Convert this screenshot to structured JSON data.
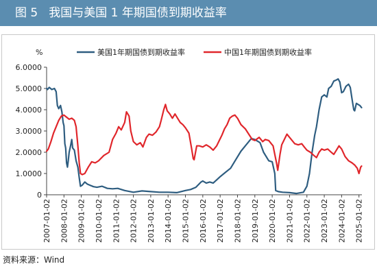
{
  "header": {
    "figure_label": "图 5",
    "title": "我国与美国 1 年期国债到期收益率"
  },
  "source": "资料来源：Wind",
  "colors": {
    "header_bg": "#5b8db0",
    "us": "#2e5d80",
    "cn": "#e0262b"
  },
  "chart_data": {
    "type": "line",
    "title": "我国与美国 1 年期国债到期收益率",
    "ylabel": "%",
    "xlabel": "",
    "ylim": [
      0,
      6
    ],
    "y_ticks": [
      "0",
      "1.0000",
      "2.0000",
      "3.0000",
      "4.0000",
      "5.0000",
      "6.0000"
    ],
    "x_ticks": [
      "2007-01-02",
      "2008-01-02",
      "2009-01-02",
      "2010-01-02",
      "2011-01-02",
      "2012-01-02",
      "2013-01-02",
      "2014-01-02",
      "2015-01-02",
      "2016-01-02",
      "2017-01-02",
      "2018-01-02",
      "2019-01-02",
      "2020-01-02",
      "2021-01-02",
      "2022-01-02",
      "2023-01-02",
      "2024-01-02",
      "2025-01-02"
    ],
    "legend_position": "top",
    "series": [
      {
        "name": "美国1年期国债到期收益率",
        "color": "#2e5d80",
        "points": [
          [
            2007.0,
            5.0
          ],
          [
            2007.05,
            4.95
          ],
          [
            2007.15,
            5.05
          ],
          [
            2007.3,
            4.95
          ],
          [
            2007.45,
            5.0
          ],
          [
            2007.55,
            4.85
          ],
          [
            2007.62,
            4.2
          ],
          [
            2007.7,
            4.05
          ],
          [
            2007.8,
            4.2
          ],
          [
            2007.88,
            3.9
          ],
          [
            2007.95,
            3.4
          ],
          [
            2008.0,
            3.25
          ],
          [
            2008.05,
            2.4
          ],
          [
            2008.1,
            2.2
          ],
          [
            2008.15,
            1.5
          ],
          [
            2008.2,
            1.3
          ],
          [
            2008.25,
            1.6
          ],
          [
            2008.3,
            2.0
          ],
          [
            2008.38,
            2.3
          ],
          [
            2008.45,
            2.6
          ],
          [
            2008.5,
            2.2
          ],
          [
            2008.6,
            2.1
          ],
          [
            2008.7,
            1.6
          ],
          [
            2008.8,
            1.3
          ],
          [
            2008.88,
            0.8
          ],
          [
            2008.95,
            0.4
          ],
          [
            2009.05,
            0.45
          ],
          [
            2009.2,
            0.6
          ],
          [
            2009.35,
            0.5
          ],
          [
            2009.5,
            0.45
          ],
          [
            2009.7,
            0.38
          ],
          [
            2009.9,
            0.35
          ],
          [
            2010.2,
            0.4
          ],
          [
            2010.5,
            0.3
          ],
          [
            2010.8,
            0.28
          ],
          [
            2011.1,
            0.3
          ],
          [
            2011.5,
            0.2
          ],
          [
            2012.0,
            0.12
          ],
          [
            2012.5,
            0.18
          ],
          [
            2013.0,
            0.15
          ],
          [
            2013.5,
            0.12
          ],
          [
            2014.0,
            0.12
          ],
          [
            2014.5,
            0.1
          ],
          [
            2015.0,
            0.2
          ],
          [
            2015.3,
            0.25
          ],
          [
            2015.6,
            0.35
          ],
          [
            2015.9,
            0.6
          ],
          [
            2016.0,
            0.65
          ],
          [
            2016.2,
            0.55
          ],
          [
            2016.4,
            0.6
          ],
          [
            2016.6,
            0.55
          ],
          [
            2016.8,
            0.7
          ],
          [
            2017.0,
            0.85
          ],
          [
            2017.3,
            1.05
          ],
          [
            2017.6,
            1.25
          ],
          [
            2017.9,
            1.65
          ],
          [
            2018.2,
            2.05
          ],
          [
            2018.5,
            2.35
          ],
          [
            2018.8,
            2.65
          ],
          [
            2019.0,
            2.6
          ],
          [
            2019.3,
            2.45
          ],
          [
            2019.5,
            2.0
          ],
          [
            2019.8,
            1.6
          ],
          [
            2020.0,
            1.55
          ],
          [
            2020.15,
            1.0
          ],
          [
            2020.2,
            0.2
          ],
          [
            2020.35,
            0.15
          ],
          [
            2020.6,
            0.12
          ],
          [
            2021.0,
            0.1
          ],
          [
            2021.4,
            0.06
          ],
          [
            2021.8,
            0.12
          ],
          [
            2022.0,
            0.4
          ],
          [
            2022.15,
            1.0
          ],
          [
            2022.3,
            2.0
          ],
          [
            2022.45,
            2.8
          ],
          [
            2022.55,
            3.2
          ],
          [
            2022.7,
            4.0
          ],
          [
            2022.85,
            4.6
          ],
          [
            2023.0,
            4.7
          ],
          [
            2023.15,
            4.6
          ],
          [
            2023.25,
            5.0
          ],
          [
            2023.4,
            5.1
          ],
          [
            2023.55,
            5.35
          ],
          [
            2023.7,
            5.4
          ],
          [
            2023.8,
            5.45
          ],
          [
            2023.9,
            5.3
          ],
          [
            2024.0,
            4.8
          ],
          [
            2024.1,
            4.85
          ],
          [
            2024.25,
            5.1
          ],
          [
            2024.4,
            5.2
          ],
          [
            2024.5,
            5.05
          ],
          [
            2024.6,
            4.5
          ],
          [
            2024.7,
            4.0
          ],
          [
            2024.75,
            3.95
          ],
          [
            2024.85,
            4.3
          ],
          [
            2024.95,
            4.25
          ],
          [
            2025.05,
            4.2
          ],
          [
            2025.15,
            4.1
          ]
        ]
      },
      {
        "name": "中国1年期国债到期收益率",
        "color": "#e0262b",
        "points": [
          [
            2007.0,
            2.05
          ],
          [
            2007.1,
            2.15
          ],
          [
            2007.25,
            2.5
          ],
          [
            2007.4,
            2.9
          ],
          [
            2007.55,
            3.2
          ],
          [
            2007.7,
            3.5
          ],
          [
            2007.85,
            3.7
          ],
          [
            2008.0,
            3.75
          ],
          [
            2008.15,
            3.65
          ],
          [
            2008.3,
            3.55
          ],
          [
            2008.45,
            3.6
          ],
          [
            2008.6,
            3.5
          ],
          [
            2008.7,
            3.2
          ],
          [
            2008.8,
            2.3
          ],
          [
            2008.88,
            1.5
          ],
          [
            2008.95,
            1.0
          ],
          [
            2009.05,
            0.95
          ],
          [
            2009.2,
            1.0
          ],
          [
            2009.4,
            1.3
          ],
          [
            2009.6,
            1.55
          ],
          [
            2009.8,
            1.5
          ],
          [
            2010.0,
            1.6
          ],
          [
            2010.3,
            1.85
          ],
          [
            2010.6,
            2.0
          ],
          [
            2010.8,
            2.6
          ],
          [
            2011.0,
            2.9
          ],
          [
            2011.15,
            3.2
          ],
          [
            2011.3,
            3.05
          ],
          [
            2011.5,
            3.4
          ],
          [
            2011.6,
            3.9
          ],
          [
            2011.75,
            3.7
          ],
          [
            2011.85,
            3.0
          ],
          [
            2012.0,
            2.5
          ],
          [
            2012.2,
            2.35
          ],
          [
            2012.4,
            2.45
          ],
          [
            2012.55,
            2.25
          ],
          [
            2012.75,
            2.7
          ],
          [
            2012.9,
            2.85
          ],
          [
            2013.1,
            2.8
          ],
          [
            2013.3,
            2.95
          ],
          [
            2013.5,
            3.2
          ],
          [
            2013.6,
            3.5
          ],
          [
            2013.75,
            4.0
          ],
          [
            2013.85,
            4.25
          ],
          [
            2013.95,
            3.95
          ],
          [
            2014.1,
            3.8
          ],
          [
            2014.25,
            3.6
          ],
          [
            2014.4,
            3.8
          ],
          [
            2014.55,
            3.6
          ],
          [
            2014.7,
            3.4
          ],
          [
            2014.85,
            3.3
          ],
          [
            2015.0,
            3.15
          ],
          [
            2015.2,
            2.9
          ],
          [
            2015.35,
            2.2
          ],
          [
            2015.45,
            1.7
          ],
          [
            2015.5,
            1.65
          ],
          [
            2015.65,
            2.3
          ],
          [
            2015.8,
            2.3
          ],
          [
            2016.0,
            2.25
          ],
          [
            2016.2,
            2.35
          ],
          [
            2016.4,
            2.25
          ],
          [
            2016.6,
            2.1
          ],
          [
            2016.8,
            2.3
          ],
          [
            2016.95,
            2.55
          ],
          [
            2017.1,
            2.8
          ],
          [
            2017.25,
            3.1
          ],
          [
            2017.4,
            3.3
          ],
          [
            2017.55,
            3.6
          ],
          [
            2017.7,
            3.7
          ],
          [
            2017.85,
            3.75
          ],
          [
            2018.0,
            3.6
          ],
          [
            2018.2,
            3.3
          ],
          [
            2018.45,
            3.1
          ],
          [
            2018.65,
            2.85
          ],
          [
            2018.85,
            2.6
          ],
          [
            2019.0,
            2.55
          ],
          [
            2019.25,
            2.7
          ],
          [
            2019.45,
            2.5
          ],
          [
            2019.6,
            2.6
          ],
          [
            2019.8,
            2.55
          ],
          [
            2019.95,
            2.4
          ],
          [
            2020.05,
            2.3
          ],
          [
            2020.15,
            1.9
          ],
          [
            2020.25,
            1.5
          ],
          [
            2020.32,
            1.15
          ],
          [
            2020.45,
            1.9
          ],
          [
            2020.55,
            2.35
          ],
          [
            2020.7,
            2.6
          ],
          [
            2020.85,
            2.85
          ],
          [
            2021.0,
            2.7
          ],
          [
            2021.15,
            2.55
          ],
          [
            2021.3,
            2.4
          ],
          [
            2021.5,
            2.35
          ],
          [
            2021.7,
            2.4
          ],
          [
            2021.85,
            2.25
          ],
          [
            2022.0,
            2.1
          ],
          [
            2022.2,
            2.0
          ],
          [
            2022.4,
            1.85
          ],
          [
            2022.55,
            1.75
          ],
          [
            2022.7,
            2.0
          ],
          [
            2022.85,
            2.15
          ],
          [
            2023.0,
            2.1
          ],
          [
            2023.2,
            2.15
          ],
          [
            2023.4,
            2.0
          ],
          [
            2023.55,
            1.9
          ],
          [
            2023.7,
            2.1
          ],
          [
            2023.85,
            2.3
          ],
          [
            2024.0,
            2.15
          ],
          [
            2024.2,
            1.8
          ],
          [
            2024.4,
            1.6
          ],
          [
            2024.6,
            1.5
          ],
          [
            2024.75,
            1.4
          ],
          [
            2024.9,
            1.25
          ],
          [
            2025.0,
            1.0
          ],
          [
            2025.1,
            1.3
          ],
          [
            2025.15,
            1.35
          ]
        ]
      }
    ]
  }
}
